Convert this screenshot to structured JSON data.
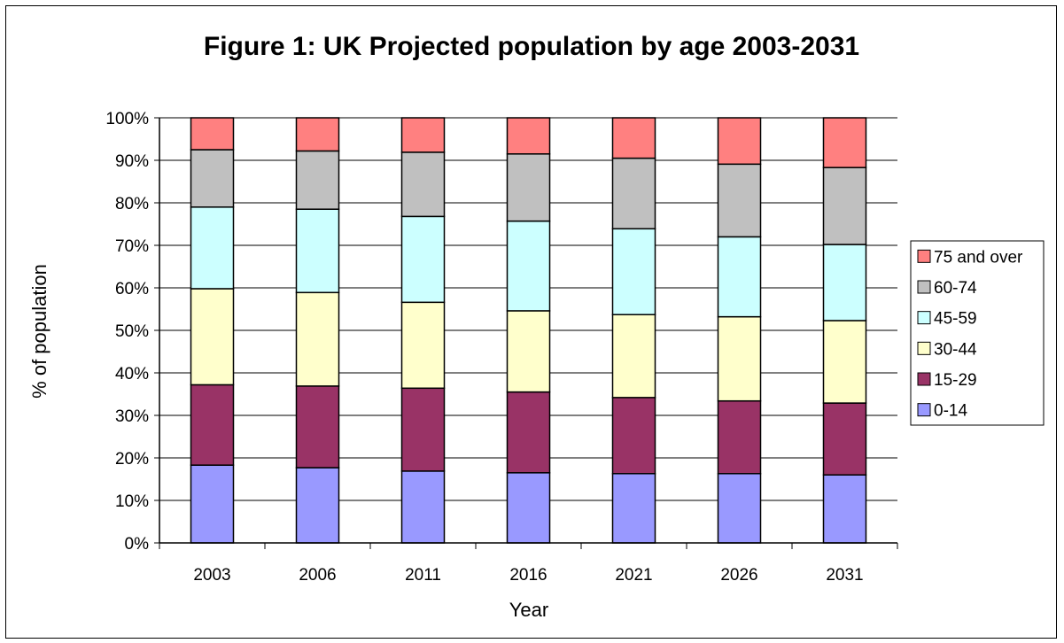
{
  "chart_data": {
    "type": "bar",
    "stacked": true,
    "percent": true,
    "title": "Figure 1: UK Projected population by age 2003-2031",
    "xlabel": "Year",
    "ylabel": "% of population",
    "categories": [
      "2003",
      "2006",
      "2011",
      "2016",
      "2021",
      "2026",
      "2031"
    ],
    "y_ticks": [
      "0%",
      "10%",
      "20%",
      "30%",
      "40%",
      "50%",
      "60%",
      "70%",
      "80%",
      "90%",
      "100%"
    ],
    "ylim": [
      0,
      100
    ],
    "grid": true,
    "legend_position": "right",
    "series": [
      {
        "name": "0-14",
        "color": "#9999FF",
        "values": [
          18.3,
          17.7,
          16.9,
          16.5,
          16.3,
          16.3,
          16.0
        ]
      },
      {
        "name": "15-29",
        "color": "#993366",
        "values": [
          18.9,
          19.2,
          19.5,
          19.0,
          17.9,
          17.1,
          16.9
        ]
      },
      {
        "name": "30-44",
        "color": "#FFFFCC",
        "values": [
          22.6,
          22.0,
          20.2,
          19.1,
          19.5,
          19.8,
          19.4
        ]
      },
      {
        "name": "45-59",
        "color": "#CCFFFF",
        "values": [
          19.2,
          19.6,
          20.2,
          21.1,
          20.2,
          18.8,
          17.9
        ]
      },
      {
        "name": "60-74",
        "color": "#C0C0C0",
        "values": [
          13.5,
          13.7,
          15.1,
          15.8,
          16.6,
          17.1,
          18.1
        ]
      },
      {
        "name": "75 and over",
        "color": "#FF8080",
        "values": [
          7.5,
          7.8,
          8.1,
          8.5,
          9.5,
          10.9,
          11.7
        ]
      }
    ]
  }
}
